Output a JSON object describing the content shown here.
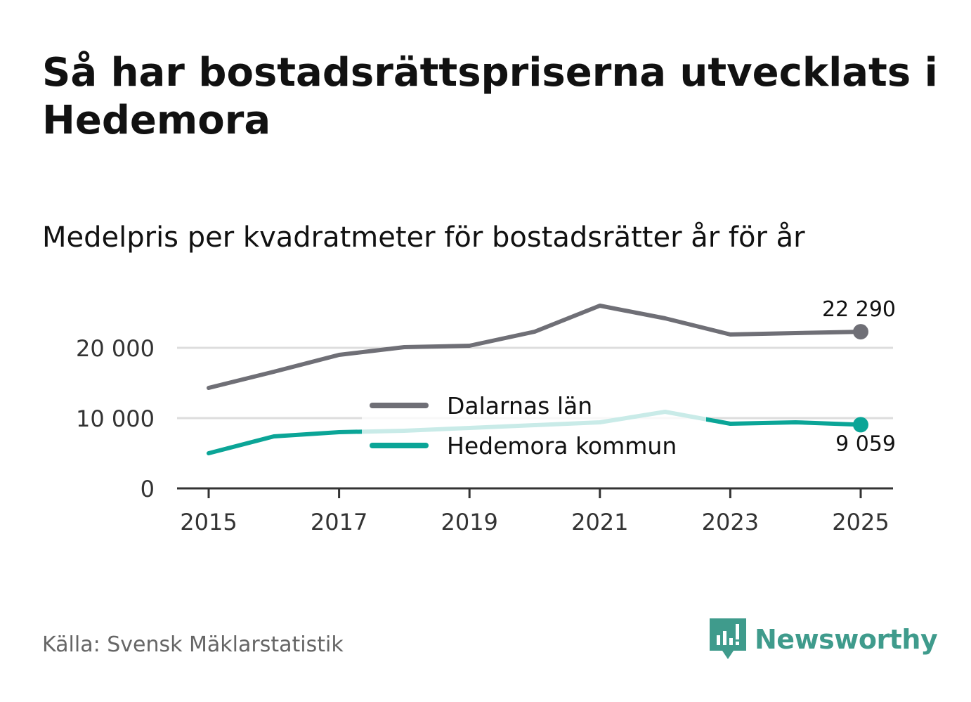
{
  "title": "Så har bostadsrättspriserna utvecklats i Hedemora",
  "subtitle": "Medelpris per kvadratmeter för bostadsrätter år för år",
  "source": "Källa: Svensk Mäklarstatistik",
  "brand": "Newsworthy",
  "colors": {
    "dalarna": "#6f6f76",
    "hedemora": "#0ba597",
    "grid": "#dddddd",
    "axis": "#333333",
    "brand": "#3f9b8c"
  },
  "chart_data": {
    "type": "line",
    "title": "Medelpris per kvadratmeter för bostadsrätter år för år",
    "xlabel": "",
    "ylabel": "",
    "x": [
      2015,
      2016,
      2017,
      2018,
      2019,
      2020,
      2021,
      2022,
      2023,
      2024,
      2025
    ],
    "x_ticks": [
      "2015",
      "2017",
      "2019",
      "2021",
      "2023",
      "2025"
    ],
    "y_ticks": [
      "0",
      "10 000",
      "20 000"
    ],
    "y_tick_values": [
      0,
      10000,
      20000
    ],
    "ylim": [
      0,
      27000
    ],
    "grid": true,
    "legend": "center",
    "series": [
      {
        "name": "Dalarnas län",
        "values": [
          14300,
          16600,
          19000,
          20100,
          20300,
          22300,
          26000,
          24200,
          21900,
          22100,
          22290
        ],
        "end_label": "22 290"
      },
      {
        "name": "Hedemora kommun",
        "values": [
          5000,
          7400,
          8000,
          8200,
          8600,
          9000,
          9400,
          10900,
          9200,
          9400,
          9059
        ],
        "end_label": "9 059"
      }
    ]
  }
}
